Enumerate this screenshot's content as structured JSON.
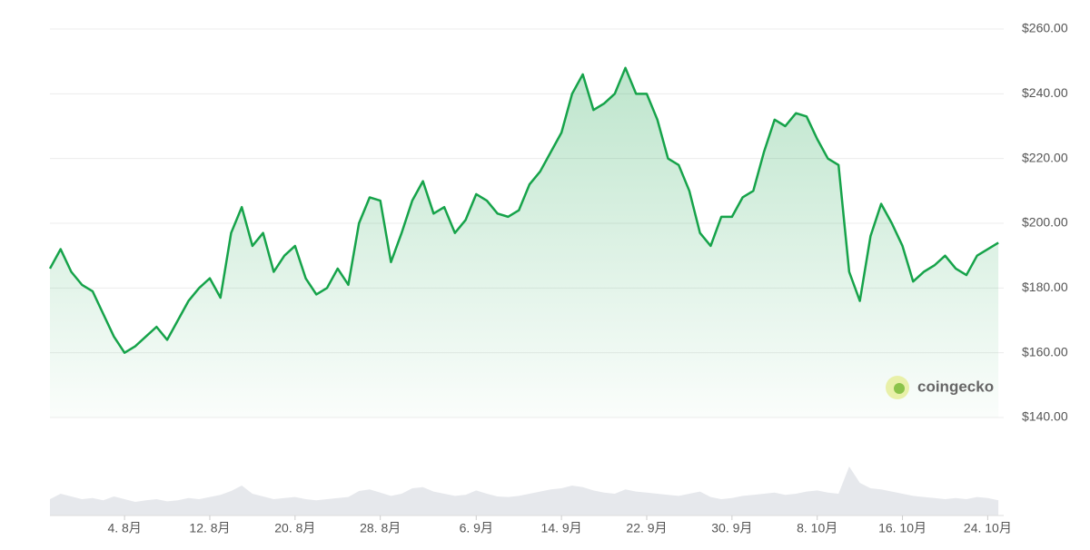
{
  "chart_data": {
    "type": "area",
    "categories": [
      null,
      null,
      null,
      null,
      null,
      null,
      null,
      "4. 8月",
      null,
      null,
      null,
      null,
      null,
      null,
      null,
      "12. 8月",
      null,
      null,
      null,
      null,
      null,
      null,
      null,
      "20. 8月",
      null,
      null,
      null,
      null,
      null,
      null,
      null,
      "28. 8月",
      null,
      null,
      null,
      null,
      null,
      null,
      null,
      null,
      "6. 9月",
      null,
      null,
      null,
      null,
      null,
      null,
      null,
      "14. 9月",
      null,
      null,
      null,
      null,
      null,
      null,
      null,
      "22. 9月",
      null,
      null,
      null,
      null,
      null,
      null,
      null,
      "30. 9月",
      null,
      null,
      null,
      null,
      null,
      null,
      null,
      "8. 10月",
      null,
      null,
      null,
      null,
      null,
      null,
      null,
      "16. 10月",
      null,
      null,
      null,
      null,
      null,
      null,
      null,
      "24. 10月",
      null
    ],
    "series": [
      {
        "color": "#16a34a",
        "values": [
          186,
          192,
          185,
          181,
          179,
          172,
          165,
          160,
          162,
          165,
          168,
          164,
          170,
          176,
          180,
          183,
          177,
          197,
          205,
          193,
          197,
          185,
          190,
          193,
          183,
          178,
          180,
          186,
          181,
          200,
          208,
          207,
          188,
          197,
          207,
          213,
          203,
          205,
          197,
          201,
          209,
          207,
          203,
          202,
          204,
          212,
          216,
          222,
          228,
          240,
          246,
          235,
          237,
          240,
          248,
          240,
          240,
          232,
          220,
          218,
          210,
          197,
          193,
          202,
          202,
          208,
          210,
          222,
          232,
          230,
          234,
          233,
          226,
          220,
          218,
          185,
          176,
          196,
          206,
          200,
          193,
          182,
          185,
          187,
          190,
          186,
          184,
          190,
          192,
          194
        ]
      }
    ],
    "volume": {
      "color": "#e6e8ec",
      "ylim": [
        0,
        100
      ],
      "values": [
        30,
        40,
        35,
        30,
        32,
        28,
        35,
        30,
        25,
        28,
        30,
        26,
        28,
        32,
        30,
        34,
        38,
        45,
        55,
        40,
        35,
        30,
        32,
        34,
        30,
        28,
        30,
        32,
        34,
        45,
        48,
        42,
        36,
        40,
        50,
        52,
        44,
        40,
        36,
        38,
        46,
        40,
        35,
        34,
        36,
        40,
        44,
        48,
        50,
        55,
        52,
        46,
        42,
        40,
        48,
        44,
        42,
        40,
        38,
        36,
        40,
        44,
        34,
        30,
        32,
        36,
        38,
        40,
        42,
        38,
        40,
        44,
        46,
        42,
        40,
        90,
        60,
        50,
        48,
        44,
        40,
        36,
        34,
        32,
        30,
        32,
        30,
        34,
        32,
        28
      ]
    },
    "ylim": [
      140,
      260
    ],
    "yticks": [
      {
        "value": 140,
        "label": "$140.00"
      },
      {
        "value": 160,
        "label": "$160.00"
      },
      {
        "value": 180,
        "label": "$180.00"
      },
      {
        "value": 200,
        "label": "$200.00"
      },
      {
        "value": 220,
        "label": "$220.00"
      },
      {
        "value": 240,
        "label": "$240.00"
      },
      {
        "value": 260,
        "label": "$260.00"
      }
    ],
    "grid": true,
    "watermark": "coingecko"
  }
}
